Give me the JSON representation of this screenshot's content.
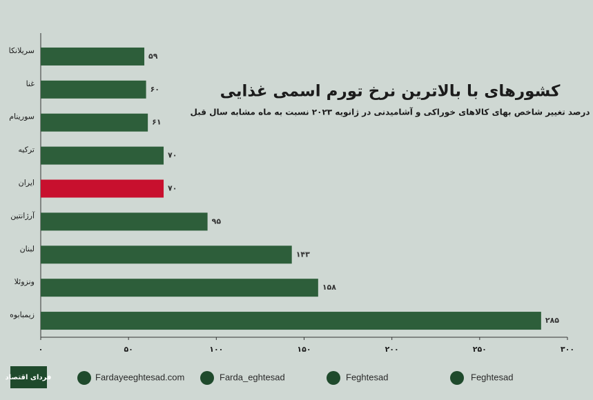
{
  "chart_data": {
    "type": "hbar",
    "title": "کشورهای با بالاترین نرخ تورم اسمی غذایی",
    "subtitle": "درصد تغییر شاخص بهای کالاهای خوراکی و آشامیدنی در ژانویه ۲۰۲۳ نسبت به ماه مشابه سال قبل",
    "categories": [
      "سریلانکا",
      "غنا",
      "سورینام",
      "ترکیه",
      "ایران",
      "آرژانتین",
      "لبنان",
      "ونزوئلا",
      "زیمبابوه"
    ],
    "values": [
      59,
      60,
      61,
      70,
      70,
      95,
      143,
      158,
      285
    ],
    "value_labels": [
      "۵۹",
      "۶۰",
      "۶۱",
      "۷۰",
      "۷۰",
      "۹۵",
      "۱۴۳",
      "۱۵۸",
      "۲۸۵"
    ],
    "colors": [
      "#2d5e3a",
      "#2d5e3a",
      "#2d5e3a",
      "#2d5e3a",
      "#c8102e",
      "#2d5e3a",
      "#2d5e3a",
      "#2d5e3a",
      "#2d5e3a"
    ],
    "xlim": [
      0,
      300
    ],
    "xticks": [
      {
        "value": 0,
        "label": "۰"
      },
      {
        "value": 50,
        "label": "۵۰"
      },
      {
        "value": 100,
        "label": "۱۰۰"
      },
      {
        "value": 150,
        "label": "۱۵۰"
      },
      {
        "value": 200,
        "label": "۲۰۰"
      },
      {
        "value": 250,
        "label": "۲۵۰"
      },
      {
        "value": 300,
        "label": "۳۰۰"
      }
    ]
  },
  "footer": {
    "logo": "فردای اقتصاد",
    "website": "Fardayeeghtesad.com",
    "instagram": "Farda_eghtesad",
    "telegram": "Feghtesad",
    "twitter": "Feghtesad"
  }
}
